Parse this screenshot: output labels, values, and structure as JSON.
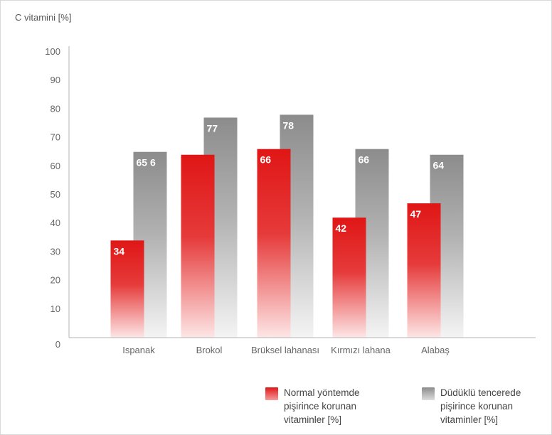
{
  "chart_data": {
    "type": "bar",
    "ylabel": "C vitamini [%]",
    "ylim": [
      0,
      100
    ],
    "yticks": [
      0,
      10,
      20,
      30,
      40,
      50,
      60,
      70,
      80,
      90,
      100
    ],
    "categories": [
      "Ispanak",
      "Brokol",
      "Brüksel lahanası",
      "Kırmızı lahana",
      "Alabaş"
    ],
    "series": [
      {
        "name": "Normal yöntemde pişirince korunan vitaminler [%]",
        "values": [
          34,
          64,
          66,
          42,
          47
        ],
        "labels": [
          "34",
          "",
          "66",
          "42",
          "47"
        ],
        "color": "#e21b1b"
      },
      {
        "name": "Düdüklü tencerede pişirince korunan vitaminler [%]",
        "values": [
          65,
          77,
          78,
          66,
          64
        ],
        "labels": [
          "65 6",
          "77",
          "78",
          "66",
          "64"
        ],
        "color": "#8f8f8f"
      }
    ],
    "grid": false,
    "legend_position": "bottom-right"
  }
}
